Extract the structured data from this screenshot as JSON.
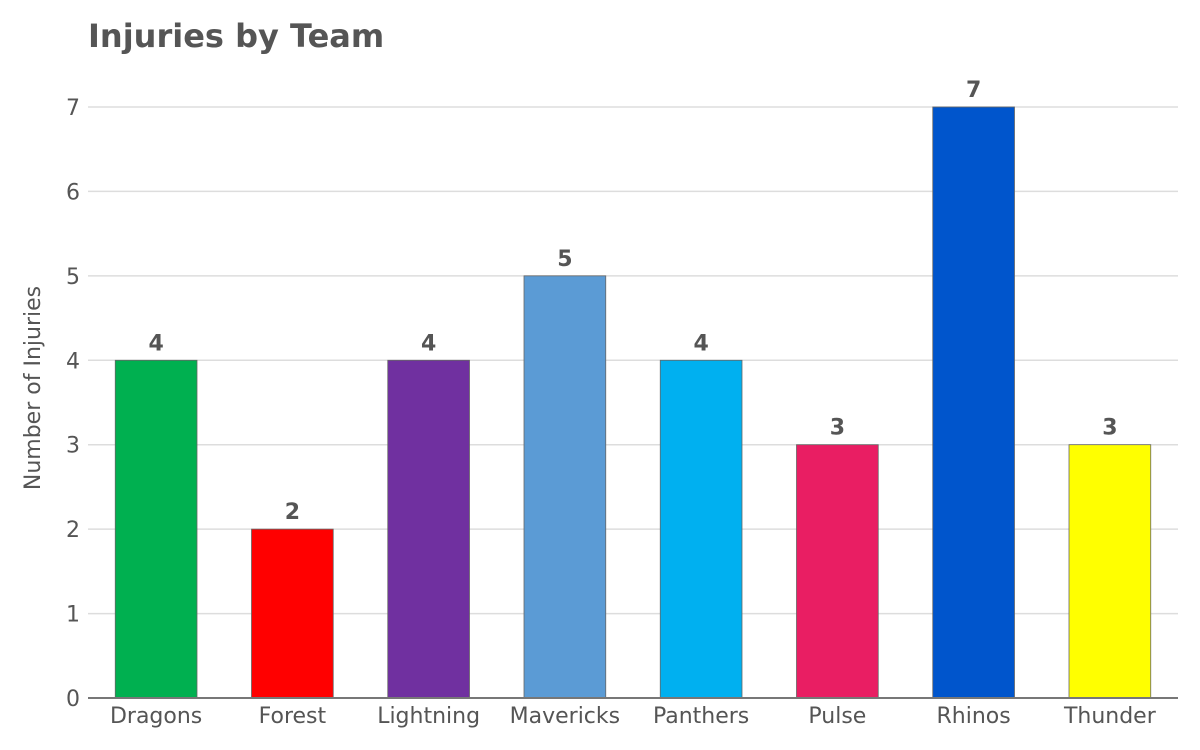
{
  "chart_data": {
    "type": "bar",
    "title": "Injuries by Team",
    "xlabel": "",
    "ylabel": "Number of Injuries",
    "categories": [
      "Dragons",
      "Forest",
      "Lightning",
      "Mavericks",
      "Panthers",
      "Pulse",
      "Rhinos",
      "Thunder"
    ],
    "values": [
      4,
      2,
      4,
      5,
      4,
      3,
      7,
      3
    ],
    "colors": [
      "#00b050",
      "#ff0000",
      "#7030a0",
      "#5b9bd5",
      "#00b0f0",
      "#e91e63",
      "#0055cc",
      "#ffff00"
    ],
    "ylim": [
      0,
      7
    ],
    "yticks": [
      "0",
      "1",
      "2",
      "3",
      "4",
      "5",
      "6",
      "7"
    ],
    "grid": true,
    "data_labels": [
      "4",
      "2",
      "4",
      "5",
      "4",
      "3",
      "7",
      "3"
    ]
  }
}
